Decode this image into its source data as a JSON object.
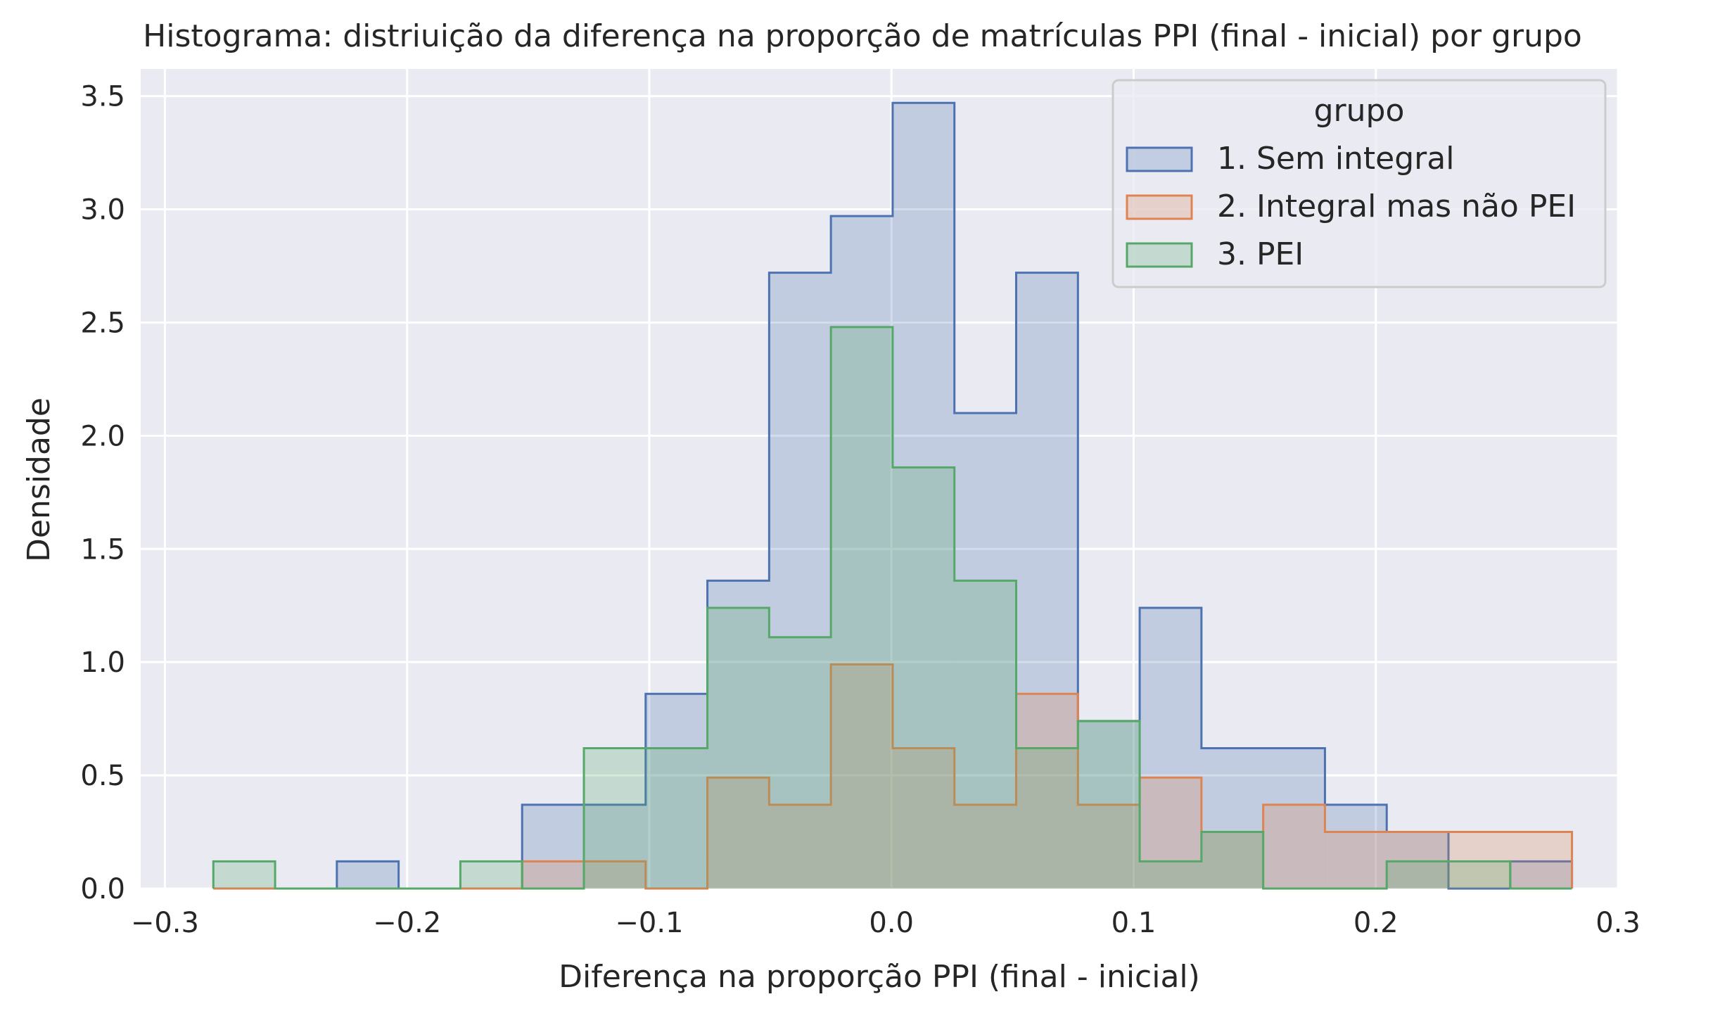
{
  "chart_data": {
    "type": "histogram",
    "title": "Histograma: distriuição da diferença na proporção de matrículas PPI (final - inicial) por grupo",
    "xlabel": "Diferença na proporção PPI (final - inicial)",
    "ylabel": "Densidade",
    "xlim": [
      -0.31,
      0.3
    ],
    "ylim": [
      0,
      3.62
    ],
    "xticks": [
      -0.3,
      -0.2,
      -0.1,
      0.0,
      0.1,
      0.2,
      0.3
    ],
    "xtick_labels": [
      "−0.3",
      "−0.2",
      "−0.1",
      "0.0",
      "0.1",
      "0.2",
      "0.3"
    ],
    "yticks": [
      0.0,
      0.5,
      1.0,
      1.5,
      2.0,
      2.5,
      3.0,
      3.5
    ],
    "ytick_labels": [
      "0.0",
      "0.5",
      "1.0",
      "1.5",
      "2.0",
      "2.5",
      "3.0",
      "3.5"
    ],
    "grid": true,
    "legend_title": "grupo",
    "legend_position": "top-right",
    "bin_edges": [
      -0.28,
      -0.2545,
      -0.229,
      -0.2035,
      -0.178,
      -0.1525,
      -0.127,
      -0.1015,
      -0.076,
      -0.0505,
      -0.025,
      0.0005,
      0.026,
      0.0515,
      0.077,
      0.1025,
      0.128,
      0.1535,
      0.179,
      0.2045,
      0.23,
      0.2555,
      0.281
    ],
    "series": [
      {
        "name": "1. Sem integral",
        "color": "#4c72b0",
        "values": [
          0,
          0,
          0.12,
          0,
          0,
          0.37,
          0.37,
          0.86,
          1.36,
          2.72,
          2.97,
          3.47,
          2.1,
          2.72,
          0.74,
          1.24,
          0.62,
          0.62,
          0.37,
          0.25,
          0,
          0.12
        ]
      },
      {
        "name": "2. Integral mas não PEI",
        "color": "#dd8452",
        "values": [
          0,
          0,
          0,
          0,
          0,
          0.12,
          0.12,
          0,
          0.49,
          0.37,
          0.99,
          0.62,
          0.37,
          0.86,
          0.37,
          0.49,
          0.25,
          0.37,
          0.25,
          0.25,
          0.25,
          0.25
        ]
      },
      {
        "name": "3. PEI",
        "color": "#55a868",
        "values": [
          0.12,
          0,
          0,
          0,
          0.12,
          0,
          0.62,
          0.62,
          1.24,
          1.11,
          2.48,
          1.86,
          1.36,
          0.62,
          0.74,
          0.12,
          0.25,
          0,
          0,
          0.12,
          0.12,
          0
        ]
      }
    ]
  }
}
